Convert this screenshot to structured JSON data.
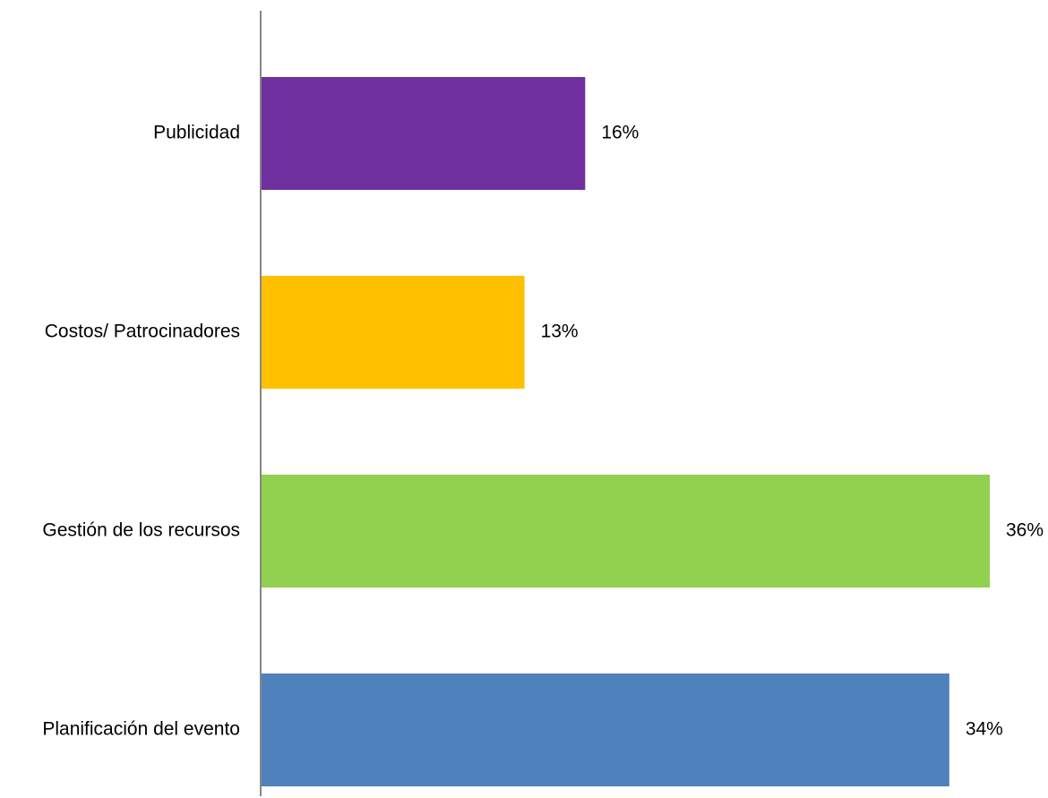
{
  "chart_data": {
    "type": "bar",
    "orientation": "horizontal",
    "categories": [
      "Publicidad",
      "Costos/ Patrocinadores",
      "Gestión de los recursos",
      "Planificación del evento"
    ],
    "values": [
      16,
      13,
      36,
      34
    ],
    "value_labels": [
      "16%",
      "13%",
      "36%",
      "34%"
    ],
    "colors": [
      "#7030A0",
      "#FFC000",
      "#92D050",
      "#4F81BD"
    ],
    "value_unit": "%",
    "xlim": [
      0,
      36
    ],
    "grid": false,
    "legend": "none",
    "title": "",
    "xlabel": "",
    "ylabel": ""
  }
}
